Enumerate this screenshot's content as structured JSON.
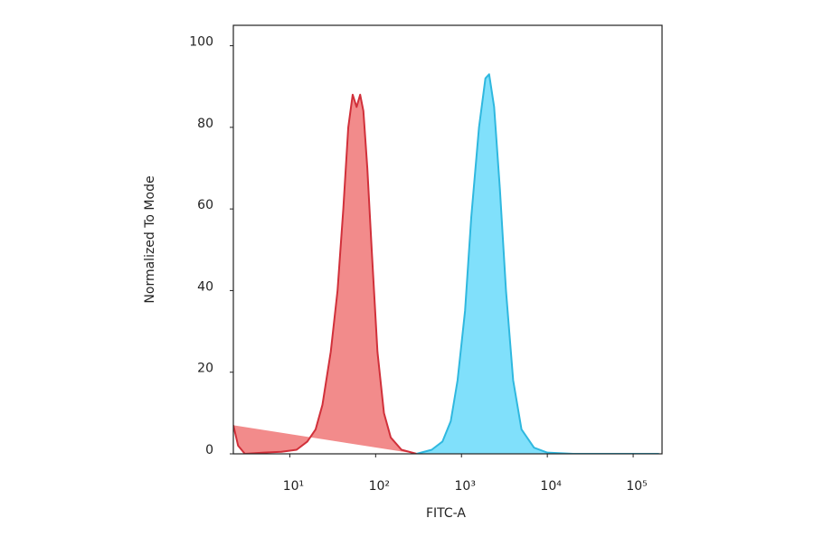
{
  "chart_data": {
    "type": "area",
    "xlabel": "FITC-A",
    "ylabel": "Normalized To Mode",
    "xscale": "log",
    "grid": false,
    "xlim": [
      2.2,
      217000
    ],
    "ylim": [
      0,
      105
    ],
    "xticks": [
      {
        "value": 10,
        "label": "10¹"
      },
      {
        "value": 100,
        "label": "10²"
      },
      {
        "value": 1000,
        "label": "10³"
      },
      {
        "value": 10000,
        "label": "10⁴"
      },
      {
        "value": 100000,
        "label": "10⁵"
      }
    ],
    "yticks": [
      0,
      20,
      40,
      60,
      80,
      100
    ],
    "series": [
      {
        "color": "#f28b8b",
        "line_color": "#d1303a",
        "x": [
          2.2,
          2.5,
          3,
          5,
          8,
          12,
          16,
          20,
          24,
          30,
          36,
          42,
          48,
          54,
          60,
          66,
          72,
          80,
          90,
          105,
          125,
          150,
          200,
          300
        ],
        "values": [
          7,
          2,
          0,
          0.3,
          0.5,
          1,
          3,
          6,
          12,
          25,
          40,
          60,
          80,
          88,
          85,
          88,
          84,
          70,
          50,
          25,
          10,
          4,
          1,
          0
        ]
      },
      {
        "color": "#80e0fb",
        "line_color": "#2fb8df",
        "x": [
          300,
          450,
          600,
          750,
          900,
          1100,
          1300,
          1600,
          1900,
          2100,
          2400,
          2800,
          3300,
          4000,
          5000,
          7000,
          10000,
          20000,
          200000
        ],
        "values": [
          0,
          1,
          3,
          8,
          18,
          35,
          58,
          80,
          92,
          93,
          85,
          65,
          40,
          18,
          6,
          1.5,
          0.3,
          0,
          0
        ]
      }
    ]
  }
}
